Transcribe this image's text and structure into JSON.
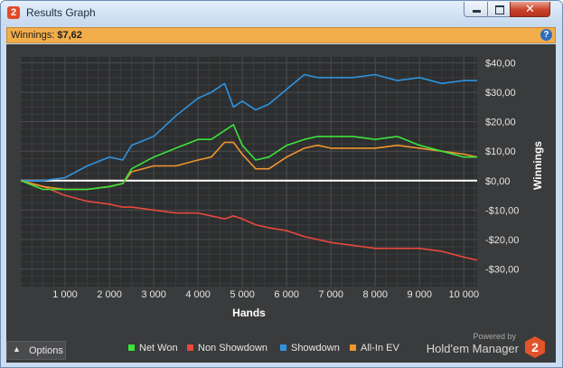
{
  "window": {
    "title": "Results Graph",
    "app_icon": "hm2-app-icon"
  },
  "infobar": {
    "label": "Winnings:",
    "value": "$7,62"
  },
  "options": {
    "label": "Options"
  },
  "legend": [
    {
      "label": "Net Won",
      "color": "#3ce33a"
    },
    {
      "label": "Non Showdown",
      "color": "#e8483e"
    },
    {
      "label": "Showdown",
      "color": "#2d93e0"
    },
    {
      "label": "All-In EV",
      "color": "#f0952e"
    }
  ],
  "branding": {
    "powered": "Powered by",
    "name": "Hold'em Manager"
  },
  "chart_data": {
    "type": "line",
    "xlabel": "Hands",
    "ylabel": "Winnings",
    "xlim": [
      0,
      10300
    ],
    "ylim": [
      -36,
      42
    ],
    "xticks": [
      1000,
      2000,
      3000,
      4000,
      5000,
      6000,
      7000,
      8000,
      9000,
      10000
    ],
    "xtick_labels": [
      "1 000",
      "2 000",
      "3 000",
      "4 000",
      "5 000",
      "6 000",
      "7 000",
      "8 000",
      "9 000",
      "10 000"
    ],
    "yticks": [
      40,
      30,
      20,
      10,
      0,
      -10,
      -20,
      -30
    ],
    "ytick_labels": [
      "$40,00",
      "$30,00",
      "$20,00",
      "$10,00",
      "$0,00",
      "-$10,00",
      "-$20,00",
      "-$30,00"
    ],
    "grid": true,
    "zero_line": true,
    "x": [
      0,
      500,
      1000,
      1500,
      2000,
      2300,
      2500,
      3000,
      3500,
      4000,
      4300,
      4600,
      4800,
      5000,
      5300,
      5600,
      6000,
      6400,
      6700,
      7000,
      7500,
      8000,
      8500,
      9000,
      9500,
      10000,
      10300
    ],
    "series": [
      {
        "name": "Showdown",
        "color": "#2d93e0",
        "values": [
          0,
          0,
          1,
          5,
          8,
          7,
          12,
          15,
          22,
          28,
          30,
          33,
          25,
          27,
          24,
          26,
          31,
          36,
          35,
          35,
          35,
          36,
          34,
          35,
          33,
          34,
          34
        ]
      },
      {
        "name": "Net Won",
        "color": "#3ce33a",
        "values": [
          0,
          -3,
          -3,
          -3,
          -2,
          -1,
          4,
          8,
          11,
          14,
          14,
          17,
          19,
          12,
          7,
          8,
          12,
          14,
          15,
          15,
          15,
          14,
          15,
          12,
          10,
          8,
          8
        ]
      },
      {
        "name": "All-In EV",
        "color": "#f0952e",
        "values": [
          0,
          -2,
          -3,
          -3,
          -2,
          -1,
          3,
          5,
          5,
          7,
          8,
          13,
          13,
          9,
          4,
          4,
          8,
          11,
          12,
          11,
          11,
          11,
          12,
          11,
          10,
          9,
          8
        ]
      },
      {
        "name": "Non Showdown",
        "color": "#e8483e",
        "values": [
          0,
          -2,
          -5,
          -7,
          -8,
          -9,
          -9,
          -10,
          -11,
          -11,
          -12,
          -13,
          -12,
          -13,
          -15,
          -16,
          -17,
          -19,
          -20,
          -21,
          -22,
          -23,
          -23,
          -23,
          -24,
          -26,
          -27
        ]
      }
    ]
  }
}
